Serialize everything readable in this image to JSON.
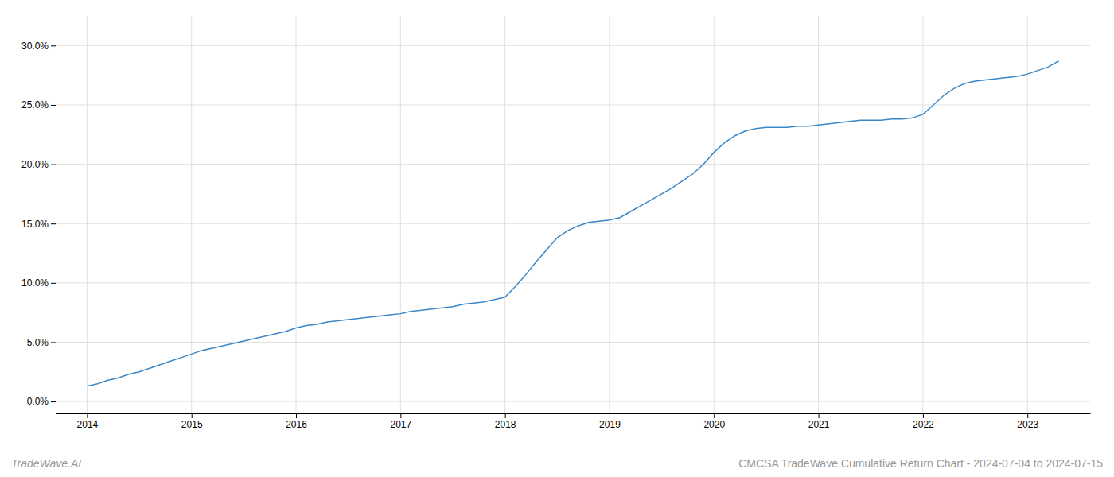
{
  "chart_data": {
    "type": "line",
    "title": "CMCSA TradeWave Cumulative Return Chart - 2024-07-04 to 2024-07-15",
    "annotations": [
      "TradeWave.AI"
    ],
    "color": "#3a87c8",
    "x": [
      2014.0,
      2014.1,
      2014.2,
      2014.3,
      2014.4,
      2014.5,
      2014.6,
      2014.7,
      2014.8,
      2014.9,
      2015.0,
      2015.1,
      2015.2,
      2015.3,
      2015.4,
      2015.5,
      2015.6,
      2015.7,
      2015.8,
      2015.9,
      2016.0,
      2016.1,
      2016.2,
      2016.3,
      2016.4,
      2016.5,
      2016.6,
      2016.7,
      2016.8,
      2016.9,
      2017.0,
      2017.1,
      2017.2,
      2017.3,
      2017.4,
      2017.5,
      2017.6,
      2017.7,
      2017.8,
      2017.9,
      2018.0,
      2018.1,
      2018.2,
      2018.3,
      2018.4,
      2018.5,
      2018.6,
      2018.7,
      2018.8,
      2018.9,
      2019.0,
      2019.1,
      2019.2,
      2019.3,
      2019.4,
      2019.5,
      2019.6,
      2019.7,
      2019.8,
      2019.9,
      2020.0,
      2020.1,
      2020.2,
      2020.3,
      2020.4,
      2020.5,
      2020.6,
      2020.7,
      2020.8,
      2020.9,
      2021.0,
      2021.1,
      2021.2,
      2021.3,
      2021.4,
      2021.5,
      2021.6,
      2021.7,
      2021.8,
      2021.9,
      2022.0,
      2022.1,
      2022.2,
      2022.3,
      2022.4,
      2022.5,
      2022.6,
      2022.7,
      2022.8,
      2022.9,
      2023.0,
      2023.1,
      2023.2,
      2023.3
    ],
    "values": [
      0.013,
      0.015,
      0.018,
      0.02,
      0.023,
      0.025,
      0.028,
      0.031,
      0.034,
      0.037,
      0.04,
      0.043,
      0.045,
      0.047,
      0.049,
      0.051,
      0.053,
      0.055,
      0.057,
      0.059,
      0.062,
      0.064,
      0.065,
      0.067,
      0.068,
      0.069,
      0.07,
      0.071,
      0.072,
      0.073,
      0.074,
      0.076,
      0.077,
      0.078,
      0.079,
      0.08,
      0.082,
      0.083,
      0.084,
      0.086,
      0.088,
      0.097,
      0.107,
      0.118,
      0.128,
      0.138,
      0.144,
      0.148,
      0.151,
      0.152,
      0.153,
      0.155,
      0.16,
      0.165,
      0.17,
      0.175,
      0.18,
      0.186,
      0.192,
      0.2,
      0.21,
      0.218,
      0.224,
      0.228,
      0.23,
      0.231,
      0.231,
      0.231,
      0.232,
      0.232,
      0.233,
      0.234,
      0.235,
      0.236,
      0.237,
      0.237,
      0.237,
      0.238,
      0.238,
      0.239,
      0.242,
      0.25,
      0.258,
      0.264,
      0.268,
      0.27,
      0.271,
      0.272,
      0.273,
      0.274,
      0.276,
      0.279,
      0.282,
      0.287
    ],
    "xlim": [
      2013.7,
      2023.6
    ],
    "ylim": [
      -0.01,
      0.325
    ],
    "xticks": [
      2014,
      2015,
      2016,
      2017,
      2018,
      2019,
      2020,
      2021,
      2022,
      2023
    ],
    "yticks": [
      {
        "value": 0.0,
        "label": "0.0%"
      },
      {
        "value": 0.05,
        "label": "5.0%"
      },
      {
        "value": 0.1,
        "label": "10.0%"
      },
      {
        "value": 0.15,
        "label": "15.0%"
      },
      {
        "value": 0.2,
        "label": "20.0%"
      },
      {
        "value": 0.25,
        "label": "25.0%"
      },
      {
        "value": 0.3,
        "label": "30.0%"
      }
    ],
    "grid": true
  }
}
